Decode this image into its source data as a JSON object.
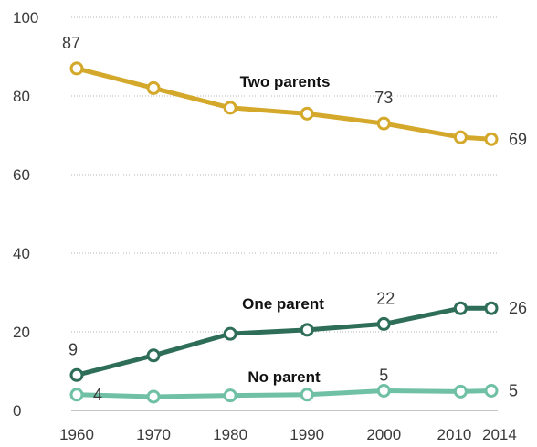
{
  "chart_data": {
    "type": "line",
    "title": "",
    "xlabel": "",
    "ylabel": "",
    "x": [
      1960,
      1970,
      1980,
      1990,
      2000,
      2010,
      2014
    ],
    "ylim": [
      0,
      100
    ],
    "yticks": [
      0,
      20,
      40,
      60,
      80,
      100
    ],
    "grid": "horizontal dotted",
    "series": [
      {
        "name": "Two parents",
        "color": "#d4a82a",
        "values": [
          87,
          82,
          77,
          75.5,
          73,
          69.5,
          69
        ],
        "labels": [
          {
            "index": 0,
            "text": "87"
          },
          {
            "index": 4,
            "text": "73"
          },
          {
            "index": 6,
            "text": "69"
          }
        ]
      },
      {
        "name": "One parent",
        "color": "#2e6e58",
        "values": [
          9,
          14,
          19.5,
          20.5,
          22,
          26,
          26
        ],
        "labels": [
          {
            "index": 0,
            "text": "9"
          },
          {
            "index": 4,
            "text": "22"
          },
          {
            "index": 6,
            "text": "26"
          }
        ]
      },
      {
        "name": "No parent",
        "color": "#6fc0a5",
        "values": [
          4,
          3.5,
          3.8,
          4,
          5,
          4.8,
          5
        ],
        "labels": [
          {
            "index": 0,
            "text": "4"
          },
          {
            "index": 4,
            "text": "5"
          },
          {
            "index": 6,
            "text": "5"
          }
        ]
      }
    ]
  }
}
